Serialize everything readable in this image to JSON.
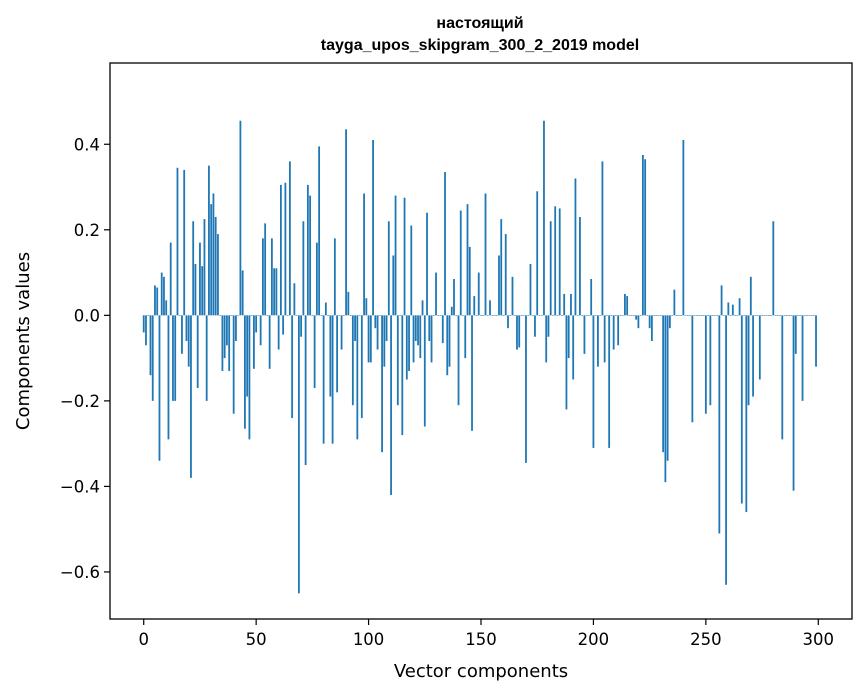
{
  "chart_data": {
    "type": "bar",
    "title_line1": "настоящий",
    "title_line2": "tayga_upos_skipgram_300_2_2019 model",
    "xlabel": "Vector components",
    "ylabel": "Components values",
    "xlim": [
      -15,
      315
    ],
    "ylim": [
      -0.71,
      0.59
    ],
    "xticks": [
      0,
      50,
      100,
      150,
      200,
      250,
      300
    ],
    "xtick_labels": [
      "0",
      "50",
      "100",
      "150",
      "200",
      "250",
      "300"
    ],
    "yticks": [
      -0.6,
      -0.4,
      -0.2,
      0.0,
      0.2,
      0.4
    ],
    "ytick_labels": [
      "−0.6",
      "−0.4",
      "−0.2",
      "0.0",
      "0.2",
      "0.4"
    ],
    "bar_color": "#1f77b4",
    "grid": false,
    "values": [
      -0.04,
      -0.07,
      0.0,
      -0.14,
      -0.2,
      0.07,
      0.065,
      -0.34,
      0.1,
      0.09,
      0.035,
      -0.29,
      0.17,
      -0.2,
      -0.2,
      0.345,
      0.0,
      -0.09,
      0.34,
      -0.06,
      -0.12,
      -0.38,
      0.22,
      0.12,
      -0.17,
      0.17,
      0.115,
      0.225,
      -0.2,
      0.35,
      0.26,
      0.285,
      0.23,
      0.19,
      0.0,
      -0.13,
      -0.1,
      -0.07,
      -0.13,
      0.0,
      -0.23,
      -0.06,
      0.0,
      0.455,
      0.105,
      -0.265,
      -0.19,
      -0.29,
      0.0,
      -0.125,
      -0.04,
      0.0,
      -0.07,
      0.18,
      0.215,
      0.0,
      -0.125,
      0.18,
      0.11,
      0.11,
      -0.08,
      0.305,
      -0.045,
      0.31,
      0.0,
      0.36,
      -0.24,
      0.075,
      0.0,
      -0.65,
      -0.05,
      0.22,
      -0.35,
      0.305,
      0.28,
      0.0,
      -0.17,
      0.17,
      0.395,
      0.0,
      -0.3,
      0.03,
      0.0,
      -0.19,
      -0.3,
      0.18,
      -0.18,
      0.0,
      -0.08,
      0.0,
      0.435,
      0.055,
      0.0,
      -0.21,
      -0.06,
      -0.29,
      0.0,
      -0.24,
      0.285,
      0.04,
      -0.11,
      -0.11,
      0.41,
      -0.03,
      -0.08,
      0.0,
      -0.32,
      -0.12,
      -0.06,
      0.22,
      -0.42,
      0.14,
      0.28,
      -0.21,
      0.0,
      -0.28,
      0.275,
      -0.15,
      -0.13,
      0.21,
      -0.11,
      -0.06,
      -0.07,
      -0.1,
      0.035,
      -0.26,
      0.24,
      -0.06,
      -0.11,
      0.0,
      0.1,
      0.0,
      0.0,
      -0.065,
      0.335,
      -0.14,
      -0.12,
      0.02,
      0.085,
      0.0,
      -0.21,
      0.245,
      0.0,
      -0.1,
      0.26,
      0.16,
      -0.27,
      0.045,
      0.0,
      0.1,
      0.0,
      0.0,
      0.285,
      0.0,
      0.035,
      0.0,
      0.0,
      0.0,
      0.14,
      0.225,
      0.0,
      0.19,
      -0.03,
      0.0,
      0.09,
      0.0,
      -0.08,
      -0.075,
      0.0,
      0.0,
      -0.345,
      0.0,
      0.12,
      0.0,
      -0.05,
      0.29,
      0.0,
      0.0,
      0.455,
      -0.11,
      -0.05,
      0.22,
      0.0,
      0.255,
      0.0,
      0.25,
      0.0,
      0.05,
      -0.22,
      -0.1,
      0.05,
      -0.15,
      0.32,
      0.0,
      0.23,
      0.0,
      -0.09,
      0.0,
      0.0,
      0.085,
      -0.31,
      0.0,
      -0.12,
      0.0,
      0.36,
      -0.11,
      0.0,
      -0.31,
      0.0,
      -0.08,
      0.0,
      -0.07,
      0.0,
      0.0,
      0.05,
      0.045,
      0.0,
      0.0,
      0.0,
      -0.01,
      -0.03,
      0.0,
      0.375,
      0.365,
      0.0,
      -0.03,
      -0.06,
      0.0,
      0.0,
      0.0,
      0.0,
      -0.32,
      -0.39,
      -0.34,
      -0.03,
      0.0,
      0.06,
      0.0,
      0.0,
      0.0,
      0.41,
      0.0,
      0.0,
      0.0,
      -0.25,
      0.0,
      0.0,
      0.0,
      0.0,
      0.0,
      -0.23,
      0.0,
      -0.21,
      0.0,
      0.0,
      0.0,
      -0.51,
      0.07,
      0.0,
      -0.63,
      0.03,
      0.0,
      0.025,
      0.0,
      0.0,
      0.04,
      -0.44,
      0.0,
      -0.46,
      -0.21,
      0.09,
      -0.19,
      0.0,
      0.0,
      -0.15,
      0.0,
      0.0,
      0.0,
      0.0,
      0.0,
      0.22,
      0.0,
      0.0,
      0.0,
      -0.29,
      0.0,
      0.0,
      0.0,
      0.0,
      -0.41,
      -0.09,
      0.0,
      0.0,
      -0.2,
      0.0,
      0.0,
      0.0,
      0.0,
      0.0,
      -0.12
    ]
  }
}
